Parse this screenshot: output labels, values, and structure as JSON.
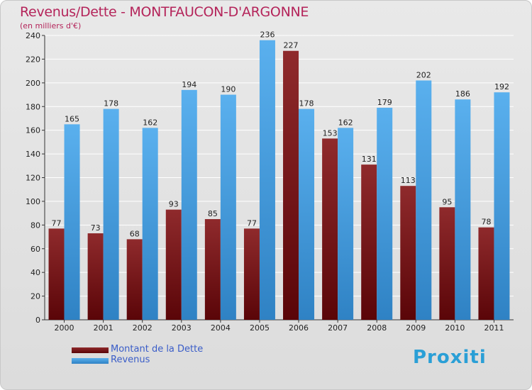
{
  "title": "Revenus/Dette - MONTFAUCON-D'ARGONNE",
  "subtitle": "(en milliers d'€)",
  "logo": "Proxiti",
  "legend": [
    {
      "label": "Montant de la Dette",
      "color": "#7a1a1e"
    },
    {
      "label": "Revenus",
      "color": "#4aa3e4"
    }
  ],
  "chart_data": {
    "type": "bar",
    "categories": [
      "2000",
      "2001",
      "2002",
      "2003",
      "2004",
      "2005",
      "2006",
      "2007",
      "2008",
      "2009",
      "2010",
      "2011"
    ],
    "series": [
      {
        "name": "Montant de la Dette",
        "color": "#7a1a1e",
        "values": [
          77,
          73,
          68,
          93,
          85,
          77,
          227,
          153,
          131,
          113,
          95,
          78
        ]
      },
      {
        "name": "Revenus",
        "color": "#4aa3e4",
        "values": [
          165,
          178,
          162,
          194,
          190,
          236,
          178,
          162,
          179,
          202,
          186,
          192
        ]
      }
    ],
    "ylim": [
      0,
      240
    ],
    "yticks": [
      0,
      20,
      40,
      60,
      80,
      100,
      120,
      140,
      160,
      180,
      200,
      220,
      240
    ],
    "grid": true
  }
}
